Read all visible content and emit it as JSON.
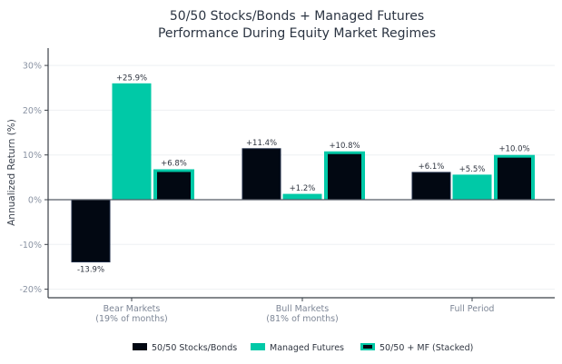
{
  "chart_data": {
    "type": "bar",
    "title": [
      "50/50 Stocks/Bonds + Managed Futures",
      "Performance During Equity Market Regimes"
    ],
    "xlabel": "",
    "ylabel": "Annualized Return (%)",
    "ylim": [
      -22,
      34
    ],
    "yticks": [
      -20,
      -10,
      0,
      10,
      20,
      30
    ],
    "ytick_labels": [
      "-20%",
      "-10%",
      "0%",
      "10%",
      "20%",
      "30%"
    ],
    "grid": true,
    "categories": [
      [
        "Bear Markets",
        "(19% of months)"
      ],
      [
        "Bull Markets",
        "(81% of months)"
      ],
      [
        "Full Period"
      ]
    ],
    "series": [
      {
        "name": "50/50 Stocks/Bonds",
        "values": [
          -13.9,
          11.4,
          6.1
        ],
        "labels": [
          "-13.9%",
          "+11.4%",
          "+6.1%"
        ],
        "color": "#020812",
        "edge": "#1c2a44"
      },
      {
        "name": "Managed Futures",
        "values": [
          25.9,
          1.2,
          5.5
        ],
        "labels": [
          "+25.9%",
          "+1.2%",
          "+5.5%"
        ],
        "color": "#00c9a7",
        "edge": "#00c9a7"
      },
      {
        "name": "50/50 + MF (Stacked)",
        "values": [
          6.8,
          10.8,
          10.0
        ],
        "inner_values": [
          6.2,
          10.2,
          9.4
        ],
        "labels": [
          "+6.8%",
          "+10.8%",
          "+10.0%"
        ],
        "color": "#020812",
        "edge": "#00c9a7"
      }
    ],
    "legend": {
      "placement": "bottom-center",
      "entries": [
        "50/50 Stocks/Bonds",
        "Managed Futures",
        "50/50 + MF (Stacked)"
      ]
    }
  }
}
